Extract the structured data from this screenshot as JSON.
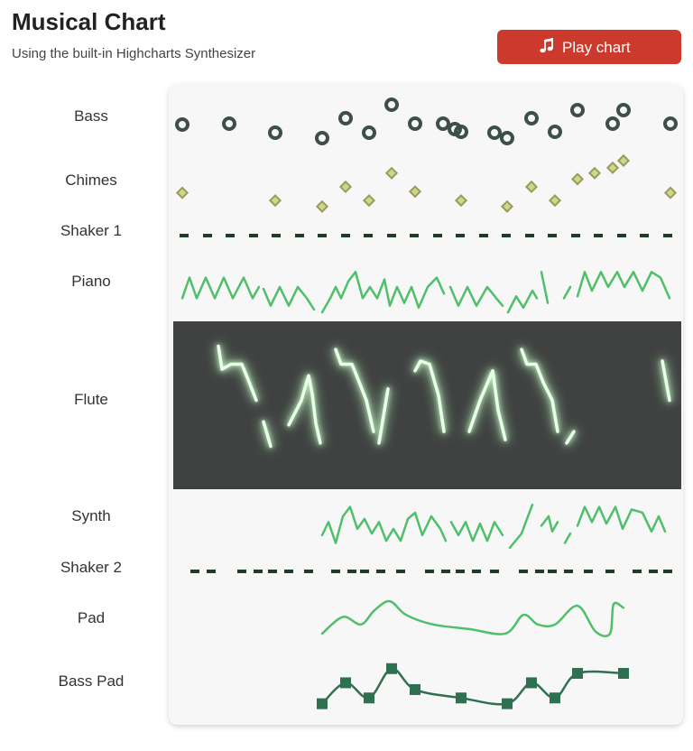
{
  "header": {
    "title": "Musical Chart",
    "subtitle": "Using the built-in Highcharts Synthesizer"
  },
  "button": {
    "label": "Play chart"
  },
  "chart_data": [
    {
      "type": "scatter",
      "name": "Bass",
      "marker": "circle",
      "color": "#3d4f47",
      "xlim": [
        0,
        560
      ],
      "ylim": [
        0,
        10
      ],
      "x": [
        7,
        59,
        110,
        162,
        188,
        214,
        239,
        265,
        296,
        309,
        316,
        353,
        367,
        394,
        420,
        445,
        484,
        496,
        548
      ],
      "values": [
        4.4,
        4.6,
        2.6,
        1.4,
        5.8,
        2.6,
        8.8,
        4.6,
        4.6,
        3.4,
        2.8,
        2.6,
        1.4,
        5.8,
        2.8,
        7.6,
        4.6,
        7.6,
        4.6
      ]
    },
    {
      "type": "scatter",
      "name": "Chimes",
      "marker": "diamond",
      "color": "#9c9a5a",
      "xlim": [
        0,
        560
      ],
      "ylim": [
        0,
        10
      ],
      "x": [
        7,
        110,
        162,
        188,
        214,
        239,
        265,
        316,
        367,
        394,
        420,
        445,
        464,
        484,
        496,
        548
      ],
      "values": [
        3.7,
        2.4,
        1.4,
        4.7,
        2.4,
        7,
        3.9,
        2.4,
        1.4,
        4.7,
        2.4,
        6,
        7,
        7.9,
        9.1,
        3.7
      ]
    },
    {
      "type": "scatter",
      "name": "Shaker 1",
      "marker": "dash",
      "color": "#1f3d24",
      "xlim": [
        0,
        560
      ],
      "ylim": [
        0,
        10
      ],
      "x": [
        9,
        35,
        60,
        86,
        111,
        137,
        162,
        188,
        213,
        239,
        264,
        290,
        315,
        341,
        366,
        392,
        417,
        443,
        468,
        494,
        519,
        545
      ],
      "values": [
        5,
        5,
        5,
        5,
        5,
        5,
        5,
        5,
        5,
        5,
        5,
        5,
        5,
        5,
        5,
        5,
        5,
        5,
        5,
        5,
        5,
        5
      ]
    },
    {
      "type": "line",
      "name": "Piano",
      "color": "#4fbf6a",
      "xlim": [
        0,
        560
      ],
      "ylim": [
        0,
        10
      ],
      "x": [
        7,
        15,
        23,
        33,
        43,
        53,
        63,
        75,
        85,
        92,
        94,
        97,
        105,
        115,
        125,
        135,
        145,
        153,
        157,
        162,
        171,
        177,
        183,
        191,
        199,
        207,
        215,
        223,
        231,
        237,
        245,
        253,
        261,
        269,
        279,
        289,
        297,
        300,
        304,
        313,
        323,
        333,
        345,
        355,
        362,
        365,
        368,
        377,
        385,
        395,
        400,
        402,
        405,
        412,
        420,
        430,
        437,
        441,
        445,
        453,
        461,
        471,
        479,
        489,
        497,
        507,
        517,
        527,
        537,
        547
      ],
      "values": [
        3,
        7.4,
        3,
        7.4,
        3,
        7.4,
        3,
        7.4,
        3,
        5.4,
        null,
        5,
        1.4,
        5.4,
        1.4,
        5.4,
        3,
        0.6,
        null,
        0,
        3,
        5.4,
        3,
        6.6,
        8.6,
        3,
        5.4,
        3,
        7,
        1.4,
        5.4,
        2,
        5.4,
        1,
        5.4,
        7.4,
        4,
        null,
        5.4,
        1.4,
        5.4,
        1.4,
        5.4,
        3,
        1.4,
        null,
        0,
        3.4,
        1,
        4.6,
        3,
        null,
        8.6,
        2,
        null,
        3,
        5.4,
        null,
        3.4,
        8.6,
        4.6,
        8.6,
        5.4,
        8.6,
        5.4,
        8.6,
        4.6,
        8.6,
        7.4,
        3
      ]
    },
    {
      "type": "line",
      "name": "Flute",
      "color": "#e8ffe8",
      "background": "#3f4241",
      "glow": true,
      "xlim": [
        0,
        560
      ],
      "ylim": [
        0,
        10
      ],
      "x": [
        47,
        51,
        61,
        73,
        79,
        89,
        93,
        97,
        105,
        115,
        125,
        139,
        147,
        151,
        155,
        160,
        168,
        177,
        183,
        195,
        201,
        211,
        219,
        222,
        225,
        235,
        250,
        265,
        271,
        281,
        291,
        297,
        311,
        325,
        337,
        351,
        357,
        365,
        374,
        383,
        389,
        399,
        407,
        417,
        423,
        428,
        433,
        441,
        490,
        539,
        547
      ],
      "values": [
        8.6,
        7.2,
        7.5,
        7.5,
        6.7,
        5.3,
        null,
        4,
        2.5,
        null,
        3.8,
        5.3,
        6.8,
        5.7,
        3.9,
        2.7,
        null,
        8.4,
        7.5,
        7.5,
        6.7,
        5.3,
        3.4,
        null,
        2.7,
        6,
        null,
        7.1,
        7.7,
        7.5,
        5.6,
        3.4,
        null,
        3.4,
        5.3,
        7.1,
        4.7,
        2.9,
        null,
        8.4,
        7.5,
        7.5,
        6.4,
        5.3,
        3.4,
        null,
        2.7,
        3.4,
        null,
        7.7,
        5.3
      ]
    },
    {
      "type": "line",
      "name": "Synth",
      "color": "#4fbf6a",
      "xlim": [
        0,
        560
      ],
      "ylim": [
        0,
        10
      ],
      "x": [
        162,
        169,
        177,
        185,
        193,
        201,
        209,
        217,
        225,
        233,
        241,
        249,
        257,
        265,
        273,
        283,
        293,
        299,
        302,
        305,
        313,
        321,
        329,
        337,
        345,
        353,
        362,
        366,
        370,
        383,
        389,
        395,
        400,
        405,
        413,
        417,
        423,
        427,
        431,
        437,
        441,
        445,
        453,
        461,
        469,
        477,
        487,
        495,
        505,
        517,
        527,
        535,
        542
      ],
      "values": [
        3.3,
        5.8,
        1.8,
        6.9,
        8.7,
        4.5,
        6.4,
        3.6,
        5.8,
        2.2,
        4.5,
        2.2,
        6.4,
        7.6,
        3.3,
        6.9,
        4.5,
        2.2,
        null,
        5.8,
        3.3,
        5.8,
        2.2,
        5.5,
        2.2,
        5.8,
        3.3,
        null,
        0.9,
        3.6,
        6.4,
        9.1,
        null,
        5.1,
        6.9,
        4,
        5.8,
        null,
        1.8,
        3.6,
        null,
        5.1,
        8.7,
        5.8,
        8.7,
        5.5,
        8.7,
        4.5,
        8.2,
        7.6,
        4,
        6.9,
        4
      ]
    },
    {
      "type": "scatter",
      "name": "Shaker 2",
      "marker": "dash",
      "color": "#1f3d24",
      "xlim": [
        0,
        560
      ],
      "ylim": [
        0,
        10
      ],
      "x": [
        21,
        39,
        73,
        91,
        107,
        125,
        147,
        177,
        195,
        209,
        227,
        249,
        281,
        299,
        315,
        333,
        353,
        385,
        403,
        417,
        435,
        457,
        481,
        511,
        529,
        545
      ],
      "values": [
        5,
        5,
        5,
        5,
        5,
        5,
        5,
        5,
        5,
        5,
        5,
        5,
        5,
        5,
        5,
        5,
        5,
        5,
        5,
        5,
        5,
        5,
        5,
        5,
        5,
        5
      ]
    },
    {
      "type": "line",
      "name": "Pad",
      "color": "#4fbf6a",
      "smooth": true,
      "xlim": [
        0,
        560
      ],
      "ylim": [
        0,
        10
      ],
      "x": [
        162,
        185,
        205,
        220,
        237,
        255,
        285,
        325,
        365,
        385,
        401,
        420,
        445,
        465,
        481,
        485,
        496
      ],
      "values": [
        1.8,
        5.1,
        3.6,
        6.4,
        8.2,
        5.5,
        3.6,
        2.7,
        1.8,
        5.5,
        3.6,
        3.6,
        7.3,
        2.2,
        1.8,
        7.6,
        6.9
      ]
    },
    {
      "type": "line",
      "name": "Bass Pad",
      "marker": "square",
      "color": "#2e7050",
      "smooth": true,
      "xlim": [
        0,
        560
      ],
      "ylim": [
        0,
        10
      ],
      "x": [
        162,
        188,
        214,
        239,
        265,
        316,
        367,
        394,
        420,
        445,
        496
      ],
      "values": [
        1.1,
        5.1,
        2.2,
        7.8,
        3.8,
        2.2,
        1.1,
        5.1,
        2.2,
        6.9,
        6.9
      ]
    }
  ]
}
